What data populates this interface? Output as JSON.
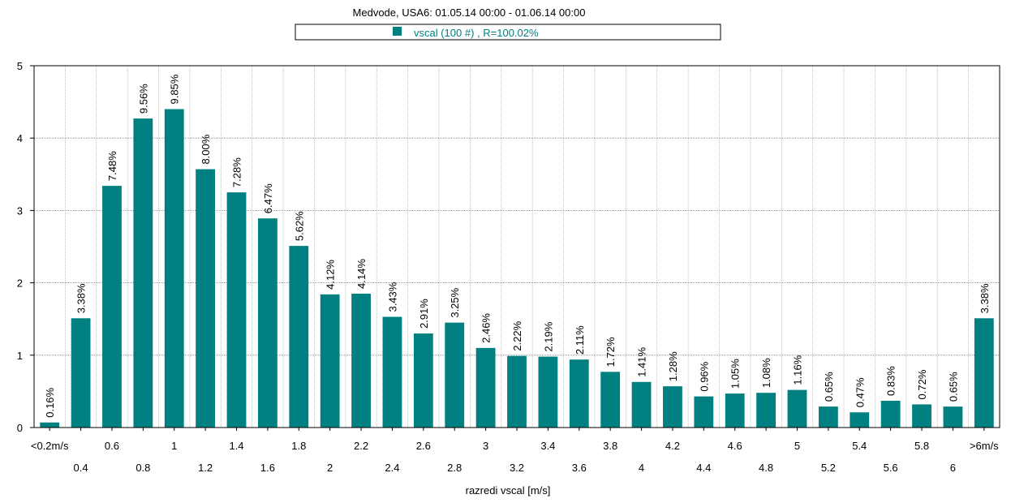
{
  "chart_data": {
    "type": "bar",
    "title": "Medvode, USA6: 01.05.14 00:00 - 01.06.14 00:00",
    "xlabel": "razredi vscal [m/s]",
    "ylabel": "",
    "ylim": [
      0,
      5
    ],
    "yticks": [
      "0",
      "1",
      "2",
      "3",
      "4",
      "5"
    ],
    "grid": true,
    "legend_position": "top-center",
    "categories": [
      "<0.2m/s",
      "0.4",
      "0.6",
      "0.8",
      "1",
      "1.2",
      "1.4",
      "1.6",
      "1.8",
      "2",
      "2.2",
      "2.4",
      "2.6",
      "2.8",
      "3",
      "3.2",
      "3.4",
      "3.6",
      "3.8",
      "4",
      "4.2",
      "4.4",
      "4.6",
      "4.8",
      "5",
      "5.2",
      "5.4",
      "5.6",
      "5.8",
      "6",
      ">6m/s"
    ],
    "series": [
      {
        "name": "vscal (100 #) , R=100.02%",
        "color": "#008080",
        "values": [
          0.07,
          1.51,
          3.34,
          4.27,
          4.4,
          3.57,
          3.25,
          2.89,
          2.51,
          1.84,
          1.85,
          1.53,
          1.3,
          1.45,
          1.1,
          0.99,
          0.98,
          0.94,
          0.77,
          0.63,
          0.57,
          0.43,
          0.47,
          0.48,
          0.52,
          0.29,
          0.21,
          0.37,
          0.32,
          0.29,
          1.51
        ],
        "labels": [
          "0.16%",
          "3.38%",
          "7.48%",
          "9.56%",
          "9.85%",
          "8.00%",
          "7.28%",
          "6.47%",
          "5.62%",
          "4.12%",
          "4.14%",
          "3.43%",
          "2.91%",
          "3.25%",
          "2.46%",
          "2.22%",
          "2.19%",
          "2.11%",
          "1.72%",
          "1.41%",
          "1.28%",
          "0.96%",
          "1.05%",
          "1.08%",
          "1.16%",
          "0.65%",
          "0.47%",
          "0.83%",
          "0.72%",
          "0.65%",
          "3.38%"
        ]
      }
    ]
  }
}
